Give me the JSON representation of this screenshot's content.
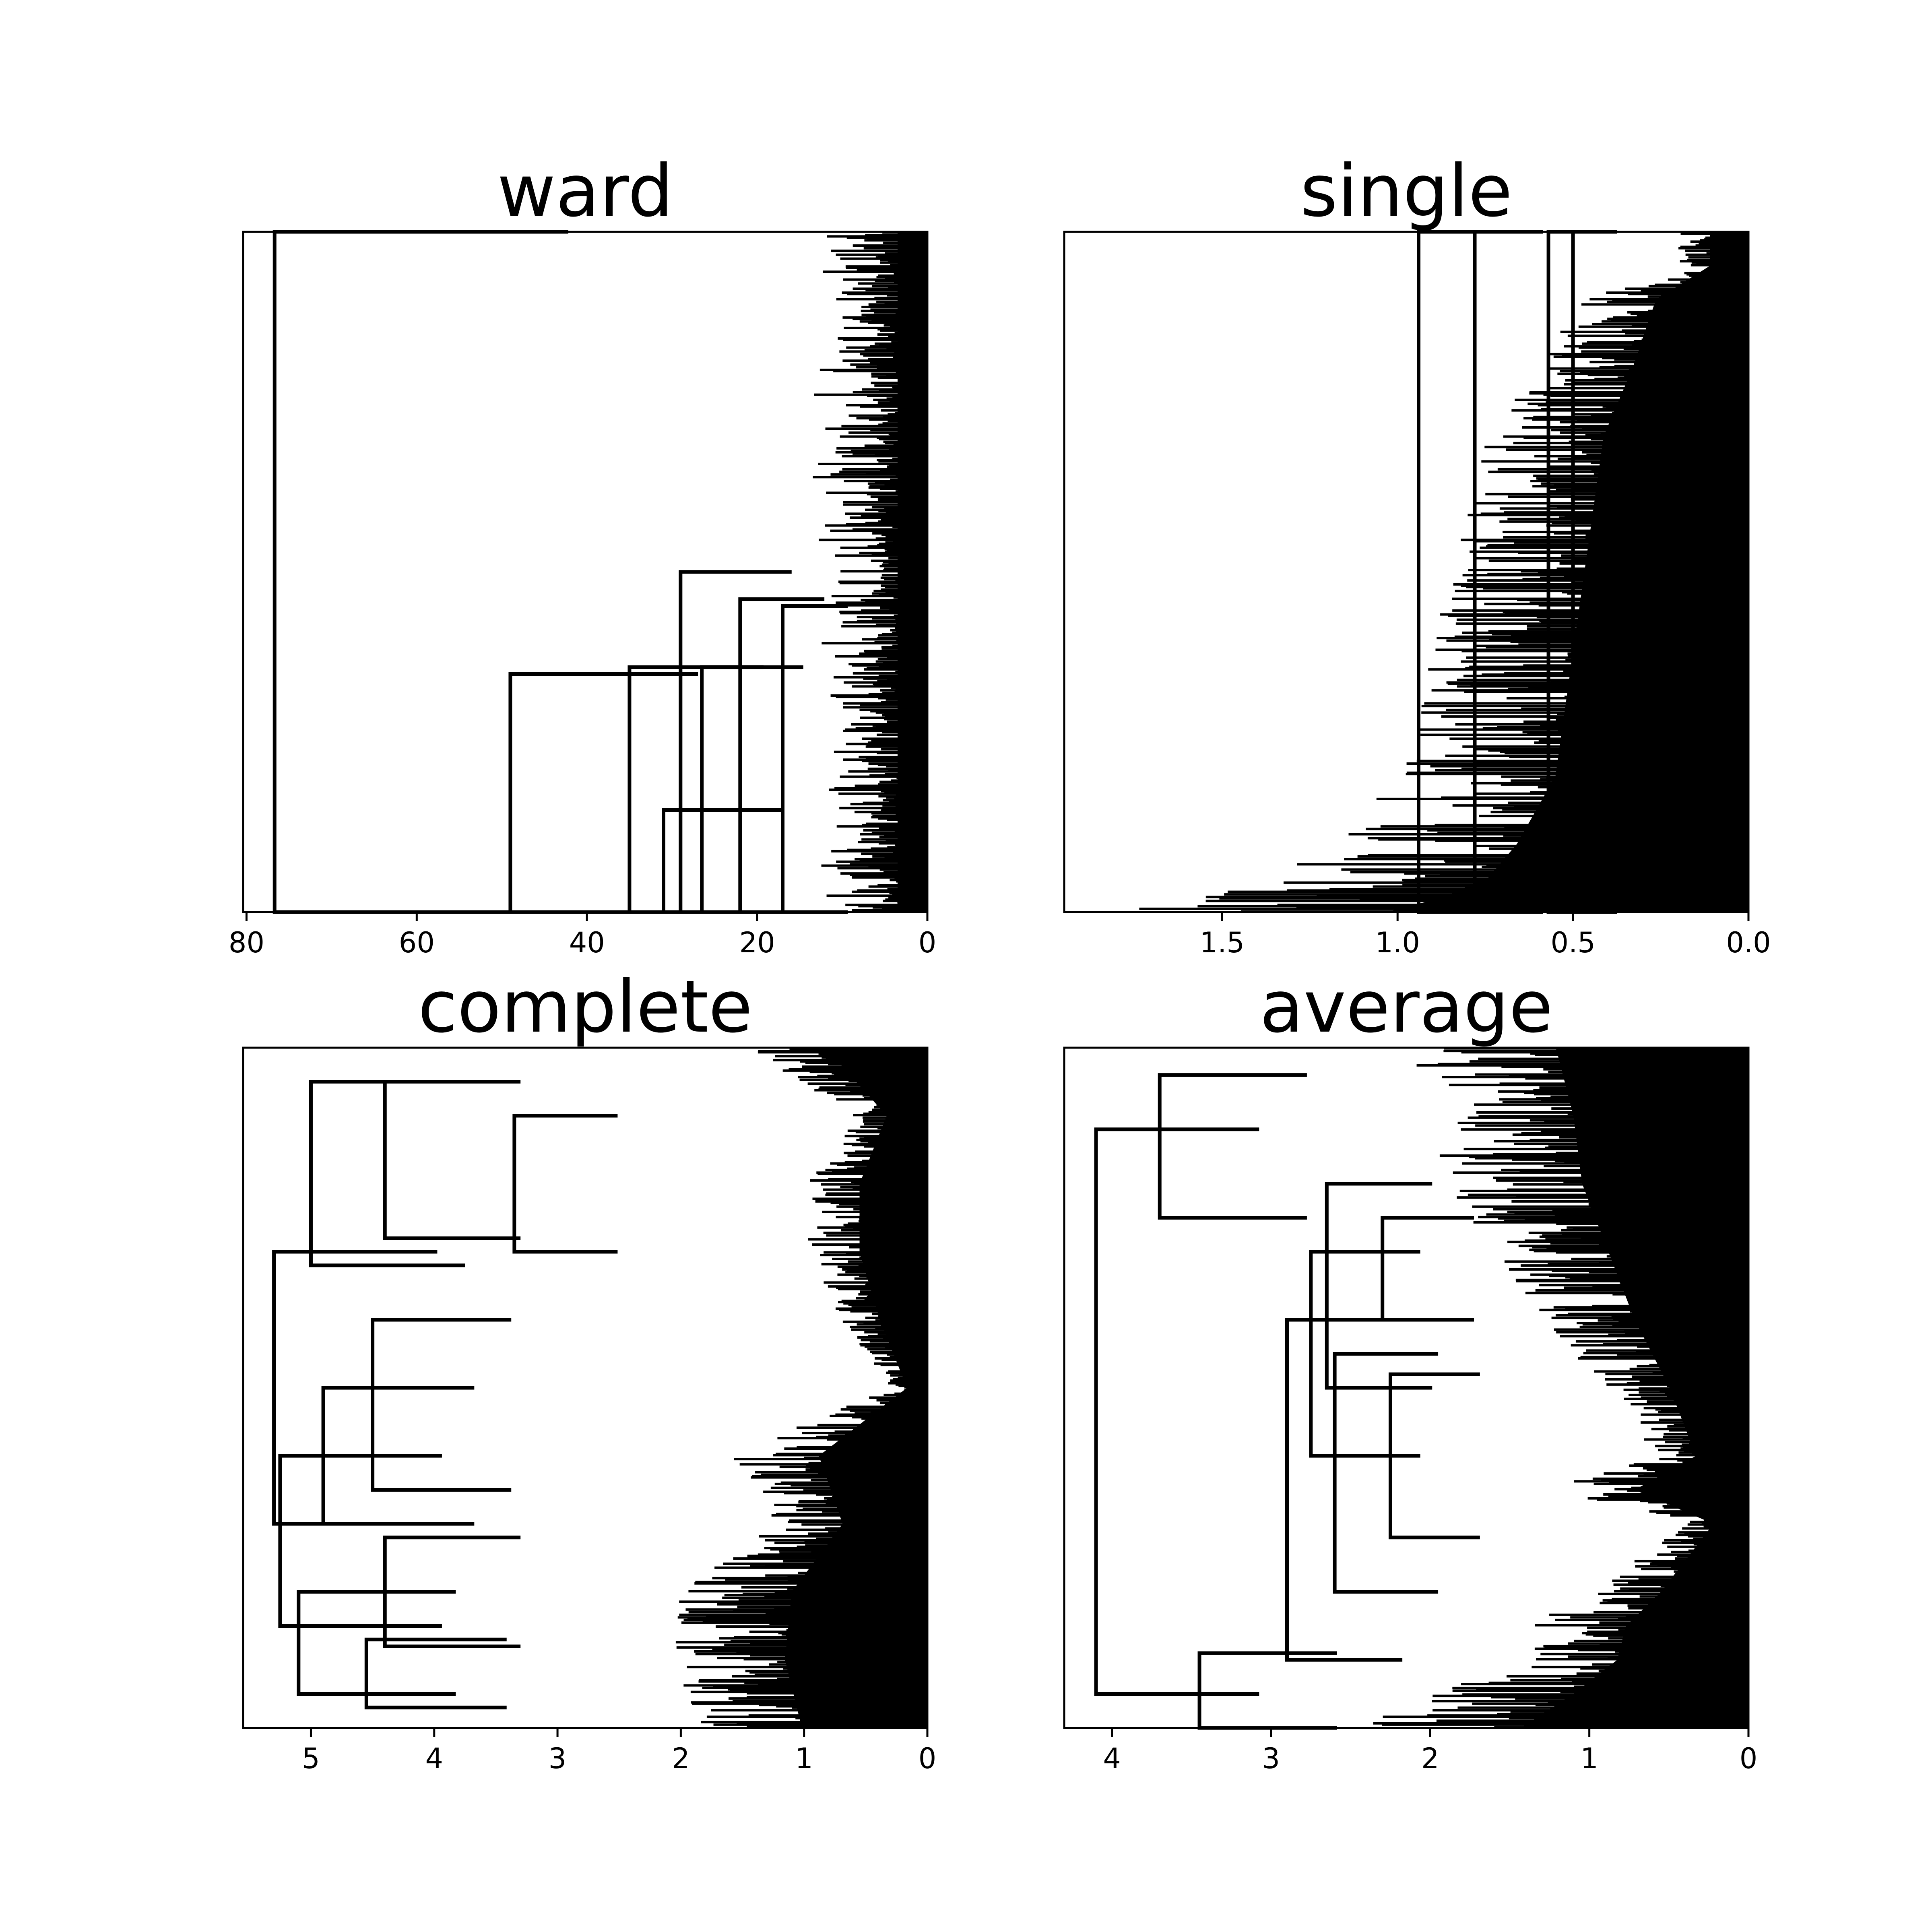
{
  "chart_data": [
    {
      "type": "dendrogram",
      "title": "ward",
      "orientation": "left",
      "xlim": [
        80.4,
        0
      ],
      "ticks": [
        80,
        60,
        40,
        20,
        0
      ],
      "tick_labels": [
        "80",
        "60",
        "40",
        "20",
        "0"
      ],
      "line_color": "#000000",
      "grid": false,
      "merges": [
        {
          "height": 76.7,
          "low": 0.0,
          "high": 1.0,
          "node": 0.5
        },
        {
          "height": 49.0,
          "low": 0.0,
          "high": 0.35,
          "node": 0.175
        },
        {
          "height": 31.0,
          "low": 0.0,
          "high": 0.15,
          "node": 0.075
        },
        {
          "height": 35.0,
          "low": 0.0,
          "high": 0.36,
          "node": 0.18
        },
        {
          "height": 26.5,
          "low": 0.0,
          "high": 0.36,
          "node": 0.18
        },
        {
          "height": 29.0,
          "low": 0.0,
          "high": 0.5,
          "node": 0.25
        },
        {
          "height": 22.0,
          "low": 0.0,
          "high": 0.46,
          "node": 0.23
        },
        {
          "height": 17.0,
          "low": 0.0,
          "high": 0.45,
          "node": 0.225
        }
      ]
    },
    {
      "type": "dendrogram",
      "title": "single",
      "orientation": "left",
      "xlim": [
        1.95,
        0
      ],
      "ticks": [
        1.5,
        1.0,
        0.5,
        0.0
      ],
      "tick_labels": [
        "1.5",
        "1.0",
        "0.5",
        "0.0"
      ],
      "line_color": "#000000",
      "grid": false,
      "merges": [
        {
          "height": 0.94,
          "low": 0.0,
          "high": 1.0,
          "node": 0.5
        },
        {
          "height": 0.78,
          "low": 0.0,
          "high": 1.0,
          "node": 0.5
        },
        {
          "height": 0.57,
          "low": 0.0,
          "high": 1.0,
          "node": 0.5
        },
        {
          "height": 0.5,
          "low": 0.0,
          "high": 1.0,
          "node": 0.5
        }
      ],
      "profile": [
        [
          0.0,
          1.88
        ],
        [
          0.02,
          1.6
        ],
        [
          0.05,
          1.35
        ],
        [
          0.1,
          1.2
        ],
        [
          0.15,
          1.1
        ],
        [
          0.2,
          1.0
        ],
        [
          0.3,
          0.95
        ],
        [
          0.5,
          0.85
        ],
        [
          0.7,
          0.75
        ],
        [
          0.8,
          0.6
        ],
        [
          0.9,
          0.48
        ],
        [
          0.95,
          0.2
        ],
        [
          1.0,
          0.2
        ]
      ]
    },
    {
      "type": "dendrogram",
      "title": "complete",
      "orientation": "left",
      "xlim": [
        5.55,
        0
      ],
      "ticks": [
        5,
        4,
        3,
        2,
        1,
        0
      ],
      "tick_labels": [
        "5",
        "4",
        "3",
        "2",
        "1",
        "0"
      ],
      "line_color": "#000000",
      "grid": false,
      "merges": [
        {
          "height": 5.3,
          "low": 0.3,
          "high": 0.7,
          "node": 0.5
        },
        {
          "height": 5.25,
          "low": 0.15,
          "high": 0.4,
          "node": 0.27
        },
        {
          "height": 5.1,
          "low": 0.05,
          "high": 0.2,
          "node": 0.12
        },
        {
          "height": 4.55,
          "low": 0.03,
          "high": 0.13,
          "node": 0.08
        },
        {
          "height": 4.4,
          "low": 0.12,
          "high": 0.28,
          "node": 0.2
        },
        {
          "height": 4.9,
          "low": 0.3,
          "high": 0.5,
          "node": 0.4
        },
        {
          "height": 4.5,
          "low": 0.35,
          "high": 0.6,
          "node": 0.47
        },
        {
          "height": 5.0,
          "low": 0.68,
          "high": 0.95,
          "node": 0.8
        },
        {
          "height": 4.4,
          "low": 0.72,
          "high": 0.95,
          "node": 0.83
        },
        {
          "height": 3.35,
          "low": 0.7,
          "high": 0.9,
          "node": 0.8
        }
      ],
      "profile": [
        [
          0.0,
          1.85
        ],
        [
          0.1,
          2.1
        ],
        [
          0.2,
          2.0
        ],
        [
          0.3,
          1.25
        ],
        [
          0.4,
          1.6
        ],
        [
          0.5,
          0.3
        ],
        [
          0.6,
          0.7
        ],
        [
          0.7,
          1.0
        ],
        [
          0.8,
          1.0
        ],
        [
          0.9,
          0.6
        ],
        [
          1.0,
          1.5
        ]
      ]
    },
    {
      "type": "dendrogram",
      "title": "average",
      "orientation": "left",
      "xlim": [
        4.3,
        0
      ],
      "ticks": [
        4,
        3,
        2,
        1,
        0
      ],
      "tick_labels": [
        "4",
        "3",
        "2",
        "1",
        "0"
      ],
      "line_color": "#000000",
      "grid": false,
      "merges": [
        {
          "height": 4.1,
          "low": 0.05,
          "high": 0.88,
          "node": 0.47
        },
        {
          "height": 3.7,
          "low": 0.75,
          "high": 0.96,
          "node": 0.86
        },
        {
          "height": 3.45,
          "low": 0.0,
          "high": 0.11,
          "node": 0.06
        },
        {
          "height": 2.9,
          "low": 0.1,
          "high": 0.6,
          "node": 0.35
        },
        {
          "height": 2.75,
          "low": 0.4,
          "high": 0.7,
          "node": 0.55
        },
        {
          "height": 2.65,
          "low": 0.5,
          "high": 0.8,
          "node": 0.65
        },
        {
          "height": 2.6,
          "low": 0.2,
          "high": 0.55,
          "node": 0.38
        },
        {
          "height": 2.3,
          "low": 0.6,
          "high": 0.75,
          "node": 0.67
        },
        {
          "height": 2.25,
          "low": 0.28,
          "high": 0.52,
          "node": 0.4
        }
      ],
      "profile": [
        [
          0.0,
          2.6
        ],
        [
          0.05,
          2.0
        ],
        [
          0.1,
          1.5
        ],
        [
          0.15,
          1.4
        ],
        [
          0.2,
          1.0
        ],
        [
          0.25,
          0.7
        ],
        [
          0.3,
          0.4
        ],
        [
          0.35,
          1.3
        ],
        [
          0.4,
          0.6
        ],
        [
          0.5,
          0.9
        ],
        [
          0.6,
          1.3
        ],
        [
          0.7,
          1.6
        ],
        [
          0.8,
          1.9
        ],
        [
          0.9,
          2.0
        ],
        [
          1.0,
          2.2
        ]
      ]
    }
  ]
}
